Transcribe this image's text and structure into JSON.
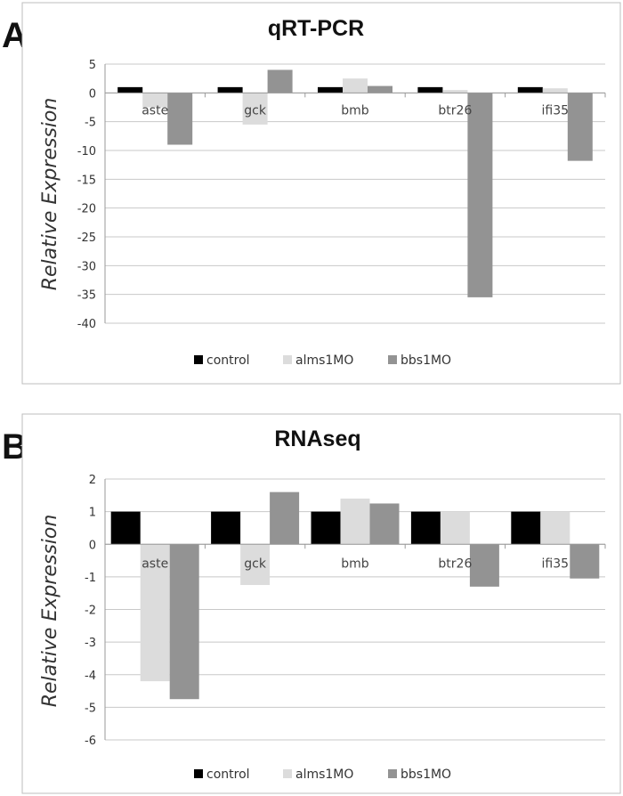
{
  "panels": [
    {
      "letter": "A"
    },
    {
      "letter": "B"
    }
  ],
  "chart_data": [
    {
      "type": "bar",
      "title": "qRT-PCR",
      "ylabel": "Relative Expression",
      "xlabel": "",
      "categories": [
        "aste",
        "gck",
        "bmb",
        "btr26",
        "ifi35"
      ],
      "ylim": [
        -40,
        5
      ],
      "yticks": [
        5,
        0,
        -5,
        -10,
        -15,
        -20,
        -25,
        -30,
        -35,
        -40
      ],
      "grid": true,
      "legend_position": "bottom",
      "series": [
        {
          "name": "control",
          "color": "#000000",
          "values": [
            1,
            1,
            1,
            1,
            1
          ]
        },
        {
          "name": "alms1MO",
          "color": "#dcdcdc",
          "values": [
            -2.5,
            -5.5,
            2.5,
            0.5,
            0.8
          ]
        },
        {
          "name": "bbs1MO",
          "color": "#939393",
          "values": [
            -9,
            4,
            1.2,
            -35.5,
            -11.8
          ]
        }
      ]
    },
    {
      "type": "bar",
      "title": "RNAseq",
      "ylabel": "Relative Expression",
      "xlabel": "",
      "categories": [
        "aste",
        "gck",
        "bmb",
        "btr26",
        "ifi35"
      ],
      "ylim": [
        -6,
        2
      ],
      "yticks": [
        2,
        1,
        0,
        -1,
        -2,
        -3,
        -4,
        -5,
        -6
      ],
      "grid": true,
      "legend_position": "bottom",
      "series": [
        {
          "name": "control",
          "color": "#000000",
          "values": [
            1,
            1,
            1,
            1,
            1
          ]
        },
        {
          "name": "alms1MO",
          "color": "#dcdcdc",
          "values": [
            -4.2,
            -1.25,
            1.4,
            1.0,
            1.0
          ]
        },
        {
          "name": "bbs1MO",
          "color": "#939393",
          "values": [
            -4.75,
            1.6,
            1.25,
            -1.3,
            -1.05
          ]
        }
      ]
    }
  ]
}
